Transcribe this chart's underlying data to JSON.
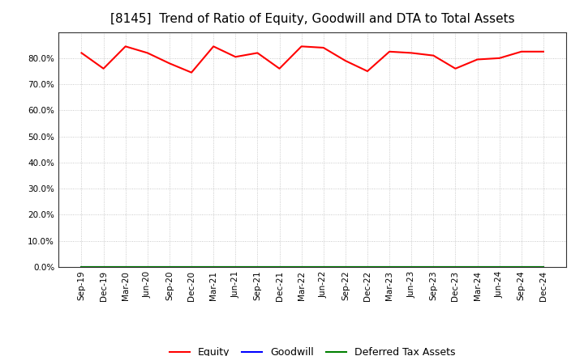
{
  "title": "[8145]  Trend of Ratio of Equity, Goodwill and DTA to Total Assets",
  "x_labels": [
    "Sep-19",
    "Dec-19",
    "Mar-20",
    "Jun-20",
    "Sep-20",
    "Dec-20",
    "Mar-21",
    "Jun-21",
    "Sep-21",
    "Dec-21",
    "Mar-22",
    "Jun-22",
    "Sep-22",
    "Dec-22",
    "Mar-23",
    "Jun-23",
    "Sep-23",
    "Dec-23",
    "Mar-24",
    "Jun-24",
    "Sep-24",
    "Dec-24"
  ],
  "equity": [
    82.0,
    76.0,
    84.5,
    82.0,
    78.0,
    74.5,
    84.5,
    80.5,
    82.0,
    76.0,
    84.5,
    84.0,
    79.0,
    75.0,
    82.5,
    82.0,
    81.0,
    76.0,
    79.5,
    80.0,
    82.5,
    82.5
  ],
  "goodwill": [
    0.0,
    0.0,
    0.0,
    0.0,
    0.0,
    0.0,
    0.0,
    0.0,
    0.0,
    0.0,
    0.0,
    0.0,
    0.0,
    0.0,
    0.0,
    0.0,
    0.0,
    0.0,
    0.0,
    0.0,
    0.0,
    0.0
  ],
  "dta": [
    0.0,
    0.0,
    0.0,
    0.0,
    0.0,
    0.0,
    0.0,
    0.0,
    0.0,
    0.0,
    0.0,
    0.0,
    0.0,
    0.0,
    0.0,
    0.0,
    0.0,
    0.0,
    0.0,
    0.0,
    0.0,
    0.0
  ],
  "equity_color": "#ff0000",
  "goodwill_color": "#0000ff",
  "dta_color": "#008000",
  "ylim_min": 0,
  "ylim_max": 90,
  "yticks": [
    0.0,
    10.0,
    20.0,
    30.0,
    40.0,
    50.0,
    60.0,
    70.0,
    80.0
  ],
  "background_color": "#ffffff",
  "plot_bg_color": "#ffffff",
  "grid_color": "#aaaaaa",
  "title_fontsize": 11,
  "tick_fontsize": 7.5,
  "legend_labels": [
    "Equity",
    "Goodwill",
    "Deferred Tax Assets"
  ],
  "line_width": 1.5
}
